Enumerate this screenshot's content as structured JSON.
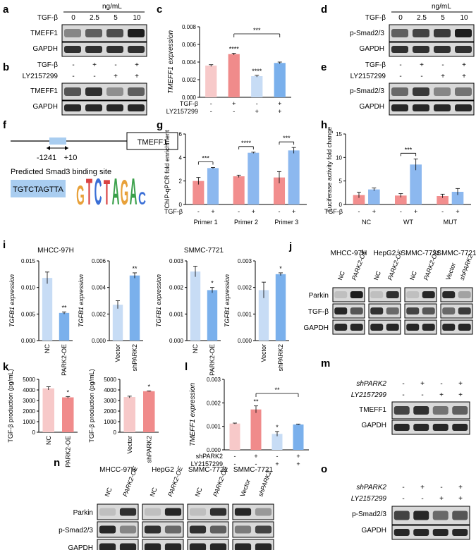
{
  "panels": {
    "a": {
      "letter": "a",
      "unit": "ng/mL",
      "row_label": "TGF-β",
      "doses": [
        "0",
        "2.5",
        "5",
        "10"
      ],
      "bands": [
        "TMEFF1",
        "GAPDH"
      ]
    },
    "b": {
      "letter": "b",
      "rows": [
        {
          "label": "TGF-β",
          "signs": [
            "-",
            "+",
            "-",
            "+"
          ]
        },
        {
          "label": "LY2157299",
          "signs": [
            "-",
            "-",
            "+",
            "+"
          ]
        }
      ],
      "bands": [
        "TMEFF1",
        "GAPDH"
      ]
    },
    "d": {
      "letter": "d",
      "unit": "ng/mL",
      "row_label": "TGF-β",
      "doses": [
        "0",
        "2.5",
        "5",
        "10"
      ],
      "bands": [
        "p-Smad2/3",
        "GAPDH"
      ]
    },
    "e": {
      "letter": "e",
      "rows": [
        {
          "label": "TGF-β",
          "signs": [
            "-",
            "+",
            "-",
            "+"
          ]
        },
        {
          "label": "LY2157299",
          "signs": [
            "-",
            "-",
            "+",
            "+"
          ]
        }
      ],
      "bands": [
        "p-Smad2/3",
        "GAPDH"
      ]
    },
    "f": {
      "letter": "f",
      "gene": "TMEFF1",
      "pos_left": "-1241",
      "pos_right": "+10",
      "caption": "Predicted Smad3 binding site",
      "sequence": "TGTCTAGTTA",
      "logo": "GTCTAGAC"
    },
    "j": {
      "letter": "j",
      "blocks": [
        {
          "title": "MHCC-97H",
          "lanes": [
            "NC",
            "PARK2-OE"
          ]
        },
        {
          "title": "HepG2",
          "lanes": [
            "NC",
            "PARK2-OE"
          ]
        },
        {
          "title": "SMMC-7721",
          "lanes": [
            "NC",
            "PARK2-OE"
          ]
        },
        {
          "title": "SMMC-7721",
          "lanes": [
            "Vector",
            "shPARK2"
          ]
        }
      ],
      "bands": [
        "Parkin",
        "TGF-β",
        "GAPDH"
      ]
    },
    "m": {
      "letter": "m",
      "rows": [
        {
          "label": "shPARK2",
          "signs": [
            "-",
            "+",
            "-",
            "+"
          ]
        },
        {
          "label": "LY2157299",
          "signs": [
            "-",
            "-",
            "+",
            "+"
          ]
        }
      ],
      "bands": [
        "TMEFF1",
        "GAPDH"
      ]
    },
    "n": {
      "letter": "n",
      "blocks": [
        {
          "title": "MHCC-97H",
          "lanes": [
            "NC",
            "PARK2-OE"
          ]
        },
        {
          "title": "HepG2",
          "lanes": [
            "NC",
            "PARK2-OE"
          ]
        },
        {
          "title": "SMMC-7721",
          "lanes": [
            "NC",
            "PARK2-OE"
          ]
        },
        {
          "title": "SMMC-7721",
          "lanes": [
            "Vector",
            "shPARK2"
          ]
        }
      ],
      "bands": [
        "Parkin",
        "p-Smad2/3",
        "GAPDH"
      ]
    },
    "o": {
      "letter": "o",
      "rows": [
        {
          "label": "shPARK2",
          "signs": [
            "-",
            "+",
            "-",
            "+"
          ]
        },
        {
          "label": "LY2157299",
          "signs": [
            "-",
            "-",
            "+",
            "+"
          ]
        }
      ],
      "bands": [
        "p-Smad2/3",
        "GAPDH"
      ]
    }
  },
  "chart_data": [
    {
      "id": "c",
      "letter": "c",
      "type": "bar",
      "ylabel": "TMEFF1 expression",
      "ylim": [
        0,
        0.008
      ],
      "ticks": [
        "0.000",
        "0.002",
        "0.004",
        "0.006",
        "0.008"
      ],
      "values": [
        0.0036,
        0.0049,
        0.0024,
        0.0039
      ],
      "errors": [
        0.0001,
        0.0001,
        0.0001,
        0.0001
      ],
      "colors": [
        "#f7c9c9",
        "#f08b8b",
        "#c7dcf5",
        "#7ab0ec"
      ],
      "sig": [
        "",
        "****",
        "****",
        ""
      ],
      "bracket": {
        "from": 1,
        "to": 3,
        "label": "***"
      },
      "rows": [
        {
          "label": "TGF-β",
          "signs": [
            "-",
            "+",
            "-",
            "+"
          ]
        },
        {
          "label": "LY2157299",
          "signs": [
            "-",
            "-",
            "+",
            "+"
          ]
        }
      ]
    },
    {
      "id": "g",
      "letter": "g",
      "type": "bar",
      "ylabel": "ChIP-qPCR fold enrichment",
      "ylim": [
        0,
        6
      ],
      "ticks": [
        "0",
        "2",
        "4",
        "6"
      ],
      "groups": [
        "Primer 1",
        "Primer 2",
        "Primer 3"
      ],
      "values": [
        [
          2.0,
          3.1
        ],
        [
          2.4,
          4.4
        ],
        [
          2.3,
          4.6
        ]
      ],
      "errors": [
        [
          0.3,
          0.05
        ],
        [
          0.1,
          0.05
        ],
        [
          0.5,
          0.25
        ]
      ],
      "sig": [
        "***",
        "****",
        "***"
      ],
      "colors": [
        "#f28e8e",
        "#8cb8ef"
      ],
      "xrow": {
        "label": "TGF-β",
        "signs": [
          "-",
          "+"
        ]
      }
    },
    {
      "id": "h",
      "letter": "h",
      "type": "bar",
      "ylabel": "Luciferase activity fold change",
      "ylim": [
        0,
        15
      ],
      "ticks": [
        "0",
        "5",
        "10",
        "15"
      ],
      "groups": [
        "NC",
        "WT",
        "MUT"
      ],
      "values": [
        [
          2.0,
          3.2
        ],
        [
          1.9,
          8.5
        ],
        [
          1.8,
          2.7
        ]
      ],
      "errors": [
        [
          0.6,
          0.3
        ],
        [
          0.4,
          1.2
        ],
        [
          0.4,
          0.7
        ]
      ],
      "sig": [
        "",
        "***",
        ""
      ],
      "colors": [
        "#f28e8e",
        "#8cb8ef"
      ],
      "xrow": {
        "label": "TGF-β",
        "signs": [
          "-",
          "+"
        ]
      }
    },
    {
      "id": "i1",
      "letter": "i",
      "title": "MHCC-97H",
      "type": "bar",
      "ylabel": "TGFB1 expression",
      "ylim": [
        0,
        0.015
      ],
      "ticks": [
        "0.000",
        "0.005",
        "0.010",
        "0.015"
      ],
      "categories": [
        "NC",
        "PARK2-OE"
      ],
      "values": [
        0.0118,
        0.0052
      ],
      "errors": [
        0.0011,
        0.0002
      ],
      "sig": [
        "",
        "**"
      ],
      "colors": [
        "#c7dcf5",
        "#7ab0ec"
      ]
    },
    {
      "id": "i2",
      "type": "bar",
      "ylabel": "TGFB1 expression",
      "ylim": [
        0,
        0.006
      ],
      "ticks": [
        "0.000",
        "0.002",
        "0.004",
        "0.006"
      ],
      "categories": [
        "Vector",
        "shPARK2"
      ],
      "values": [
        0.0027,
        0.0049
      ],
      "errors": [
        0.0003,
        0.0002
      ],
      "sig": [
        "",
        "**"
      ],
      "colors": [
        "#c7dcf5",
        "#7ab0ec"
      ]
    },
    {
      "id": "i3",
      "title": "SMMC-7721",
      "type": "bar",
      "ylabel": "TGFB1 expression",
      "ylim": [
        0,
        0.003
      ],
      "ticks": [
        "0.000",
        "0.001",
        "0.002",
        "0.003"
      ],
      "categories": [
        "NC",
        "PARK2-OE"
      ],
      "values": [
        0.0026,
        0.0019
      ],
      "errors": [
        0.0002,
        0.0001
      ],
      "sig": [
        "",
        "*"
      ],
      "colors": [
        "#c7dcf5",
        "#7ab0ec"
      ]
    },
    {
      "id": "i4",
      "type": "bar",
      "ylabel": "TGFB1 expression",
      "ylim": [
        0,
        0.003
      ],
      "ticks": [
        "0.000",
        "0.001",
        "0.002",
        "0.003"
      ],
      "categories": [
        "Vector",
        "shPARK2"
      ],
      "values": [
        0.0019,
        0.0025
      ],
      "errors": [
        0.0003,
        5e-05
      ],
      "sig": [
        "",
        "*"
      ],
      "colors": [
        "#c7dcf5",
        "#7ab0ec"
      ]
    },
    {
      "id": "k1",
      "letter": "k",
      "type": "bar",
      "ylabel": "TGF-β production (pg/mL)",
      "ylim": [
        0,
        5000
      ],
      "ticks": [
        "0",
        "1000",
        "2000",
        "3000",
        "4000",
        "5000"
      ],
      "categories": [
        "NC",
        "PARK2-OE"
      ],
      "values": [
        4150,
        3300
      ],
      "errors": [
        150,
        80
      ],
      "sig": [
        "",
        "*"
      ],
      "colors": [
        "#f7c9c9",
        "#f08b8b"
      ]
    },
    {
      "id": "k2",
      "type": "bar",
      "ylabel": "TGF-β production (pg/mL)",
      "ylim": [
        0,
        5000
      ],
      "ticks": [
        "0",
        "1000",
        "2000",
        "3000",
        "4000",
        "5000"
      ],
      "categories": [
        "Vector",
        "shPARK2"
      ],
      "values": [
        3330,
        3880
      ],
      "errors": [
        80,
        30
      ],
      "sig": [
        "",
        "*"
      ],
      "colors": [
        "#f7c9c9",
        "#f08b8b"
      ]
    },
    {
      "id": "l",
      "letter": "l",
      "type": "bar",
      "ylabel": "TMEFF1 expression",
      "ylim": [
        0,
        0.003
      ],
      "ticks": [
        "0.000",
        "0.001",
        "0.002",
        "0.003"
      ],
      "values": [
        0.00112,
        0.00172,
        0.00068,
        0.00108
      ],
      "errors": [
        2e-05,
        0.00015,
        0.0001,
        2e-05
      ],
      "colors": [
        "#f7c9c9",
        "#f08b8b",
        "#c7dcf5",
        "#7ab0ec"
      ],
      "sig": [
        "",
        "**",
        "*",
        ""
      ],
      "bracket": {
        "from": 1,
        "to": 3,
        "label": "**"
      },
      "rows": [
        {
          "label": "shPARK2",
          "signs": [
            "-",
            "+",
            "-",
            "+"
          ]
        },
        {
          "label": "LY2157299",
          "signs": [
            "-",
            "-",
            "+",
            "+"
          ]
        }
      ]
    }
  ]
}
